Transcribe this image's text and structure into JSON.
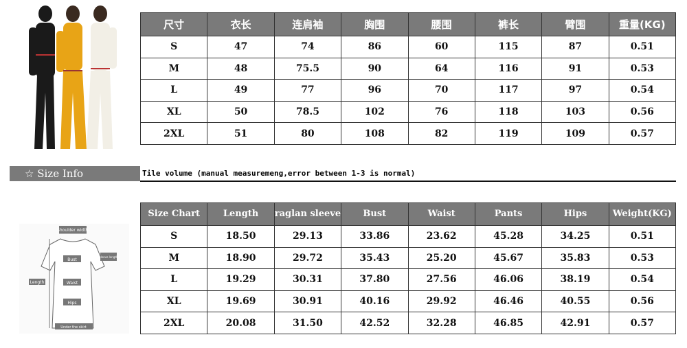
{
  "cn_table": {
    "headers": [
      "尺寸",
      "衣长",
      "连肩袖",
      "胸围",
      "腰围",
      "裤长",
      "臂围",
      "重量(KG)"
    ],
    "rows": [
      [
        "S",
        "47",
        "74",
        "86",
        "60",
        "115",
        "87",
        "0.51"
      ],
      [
        "M",
        "48",
        "75.5",
        "90",
        "64",
        "116",
        "91",
        "0.53"
      ],
      [
        "L",
        "49",
        "77",
        "96",
        "70",
        "117",
        "97",
        "0.54"
      ],
      [
        "XL",
        "50",
        "78.5",
        "102",
        "76",
        "118",
        "103",
        "0.56"
      ],
      [
        "2XL",
        "51",
        "80",
        "108",
        "82",
        "119",
        "109",
        "0.57"
      ]
    ]
  },
  "size_info": {
    "icon": "star-outline-icon",
    "label": "Size Info",
    "note": "Tile volume (manual measuremeng,error between 1-3 is normal)"
  },
  "en_table": {
    "headers": [
      "Size Chart",
      "Length",
      "raglan sleeve",
      "Bust",
      "Waist",
      "Pants",
      "Hips",
      "Weight(KG)"
    ],
    "rows": [
      [
        "S",
        "18.50",
        "29.13",
        "33.86",
        "23.62",
        "45.28",
        "34.25",
        "0.51"
      ],
      [
        "M",
        "18.90",
        "29.72",
        "35.43",
        "25.20",
        "45.67",
        "35.83",
        "0.53"
      ],
      [
        "L",
        "19.29",
        "30.31",
        "37.80",
        "27.56",
        "46.06",
        "38.19",
        "0.54"
      ],
      [
        "XL",
        "19.69",
        "30.91",
        "40.16",
        "29.92",
        "46.46",
        "40.55",
        "0.56"
      ],
      [
        "2XL",
        "20.08",
        "31.50",
        "42.52",
        "32.28",
        "46.85",
        "42.91",
        "0.57"
      ]
    ]
  },
  "diagram": {
    "labels": [
      "shoulder width",
      "sleeve length",
      "Bust",
      "Length",
      "Waist",
      "Hips",
      "Under the skirt"
    ]
  }
}
